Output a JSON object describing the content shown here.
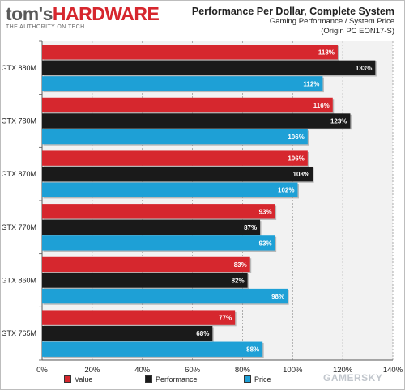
{
  "branding": {
    "logo_left": "tom's",
    "logo_right": "HARDWARE",
    "tagline": "THE AUTHORITY ON TECH"
  },
  "chart_data": {
    "type": "bar",
    "orientation": "horizontal",
    "title": "Performance Per Dollar, Complete System",
    "subtitle_lines": [
      "Gaming Performance / System Price",
      "(Origin PC EON17-S)"
    ],
    "categories": [
      "GTX 880M",
      "GTX 780M",
      "GTX 870M",
      "GTX 770M",
      "GTX 860M",
      "GTX 765M"
    ],
    "series": [
      {
        "name": "Value",
        "color": "#d6272e",
        "values": [
          118,
          116,
          106,
          93,
          83,
          77
        ]
      },
      {
        "name": "Performance",
        "color": "#1a1a1a",
        "values": [
          133,
          123,
          108,
          87,
          82,
          68
        ]
      },
      {
        "name": "Price",
        "color": "#1ea0d6",
        "values": [
          112,
          106,
          102,
          93,
          98,
          88
        ]
      }
    ],
    "value_suffix": "%",
    "xlim": [
      0,
      140
    ],
    "xticks": [
      0,
      20,
      40,
      60,
      80,
      100,
      120,
      140
    ],
    "grid": true,
    "legend_position": "bottom"
  },
  "watermark": "GAMERSKY"
}
